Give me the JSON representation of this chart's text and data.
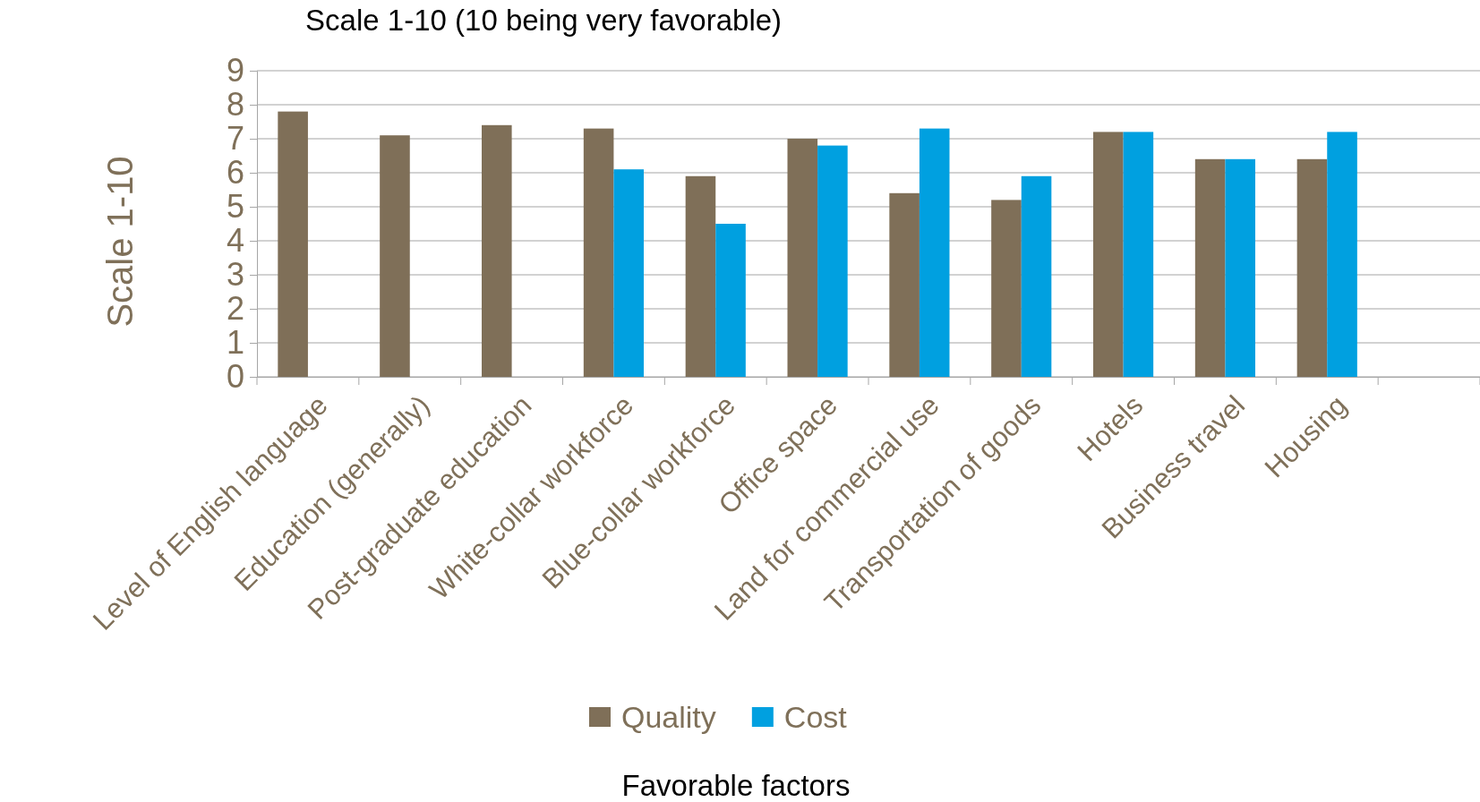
{
  "chart_data": {
    "type": "bar",
    "title": "Scale 1-10 (10 being very favorable)",
    "xlabel": "Favorable factors",
    "ylabel": "Scale  1-10",
    "categories": [
      "Level of English language",
      "Education (generally)",
      "Post-graduate education",
      "White-collar workforce",
      "Blue-collar workforce",
      "Office space",
      "Land for commercial use",
      "Transportation of goods",
      "Hotels",
      "Business travel",
      "Housing",
      null
    ],
    "series": [
      {
        "name": "Quality",
        "color": "#7f6f58",
        "values": [
          7.8,
          7.1,
          7.4,
          7.3,
          5.9,
          7.0,
          5.4,
          5.2,
          7.2,
          6.4,
          6.4,
          null
        ]
      },
      {
        "name": "Cost",
        "color": "#00a0e0",
        "values": [
          null,
          null,
          null,
          6.1,
          4.5,
          6.8,
          7.3,
          5.9,
          7.2,
          6.4,
          7.2,
          null
        ]
      }
    ],
    "ylim": [
      0,
      9
    ],
    "yticks": [
      0,
      1,
      2,
      3,
      4,
      5,
      6,
      7,
      8,
      9
    ],
    "grid": "y",
    "legend": "bottom"
  }
}
